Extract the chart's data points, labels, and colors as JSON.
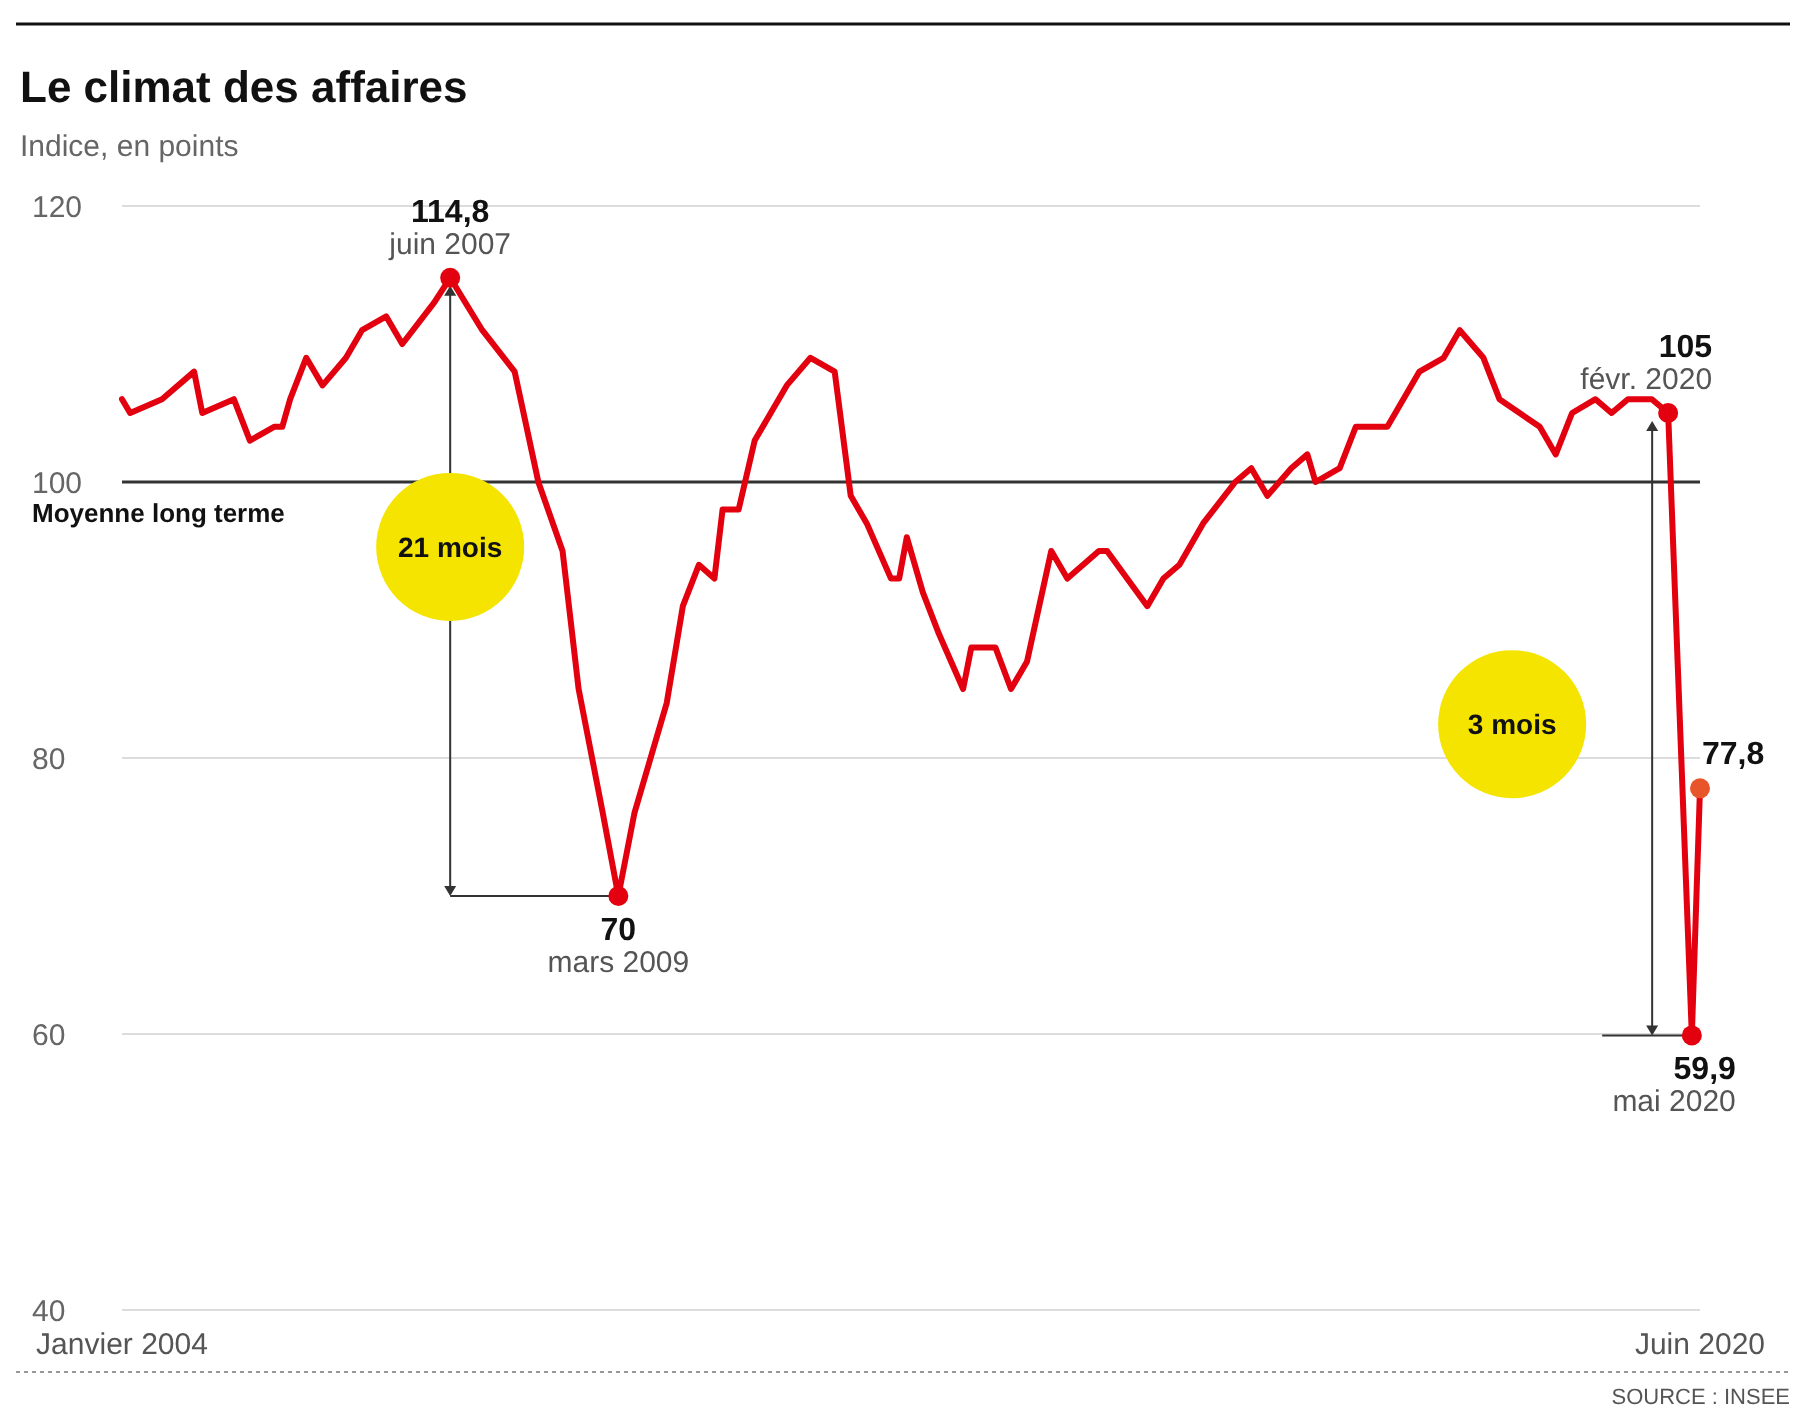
{
  "chart_data": {
    "type": "line",
    "title": "Le climat des affaires",
    "subtitle": "Indice, en points",
    "x": [
      "2004-01",
      "2004-02",
      "2004-06",
      "2004-10",
      "2004-11",
      "2005-03",
      "2005-05",
      "2005-08",
      "2005-09",
      "2005-10",
      "2005-12",
      "2006-02",
      "2006-05",
      "2006-07",
      "2006-10",
      "2006-12",
      "2007-04",
      "2007-06",
      "2007-10",
      "2008-02",
      "2008-05",
      "2008-08",
      "2008-10",
      "2009-01",
      "2009-03",
      "2009-05",
      "2009-09",
      "2009-11",
      "2010-01",
      "2010-03",
      "2010-04",
      "2010-06",
      "2010-08",
      "2010-10",
      "2010-12",
      "2011-03",
      "2011-06",
      "2011-08",
      "2011-10",
      "2012-01",
      "2012-02",
      "2012-03",
      "2012-05",
      "2012-07",
      "2012-10",
      "2012-11",
      "2013-02",
      "2013-04",
      "2013-06",
      "2013-09",
      "2013-11",
      "2014-03",
      "2014-04",
      "2014-09",
      "2014-11",
      "2015-01",
      "2015-04",
      "2015-08",
      "2015-10",
      "2015-12",
      "2016-03",
      "2016-05",
      "2016-06",
      "2016-09",
      "2016-11",
      "2017-03",
      "2017-07",
      "2017-10",
      "2017-12",
      "2018-03",
      "2018-05",
      "2018-10",
      "2018-12",
      "2019-02",
      "2019-05",
      "2019-07",
      "2019-09",
      "2019-12",
      "2020-02",
      "2020-05",
      "2020-06"
    ],
    "series": [
      {
        "color": "#e3000f",
        "values": [
          106,
          105,
          106,
          108,
          105,
          106,
          103,
          104,
          104,
          106,
          109,
          107,
          109,
          111,
          112,
          110,
          113,
          114.8,
          111,
          108,
          100,
          95,
          85,
          76,
          70,
          76,
          84,
          91,
          94,
          93,
          98,
          98,
          103,
          105,
          107,
          109,
          108,
          99,
          97,
          93,
          93,
          96,
          92,
          89,
          85,
          88,
          88,
          85,
          87,
          95,
          93,
          95,
          95,
          91,
          93,
          94,
          97,
          100,
          101,
          99,
          101,
          102,
          100,
          101,
          104,
          104,
          108,
          109,
          111,
          109,
          106,
          104,
          102,
          105,
          106,
          105,
          106,
          106,
          105,
          59.9,
          77.8
        ]
      },
      {
        "type": "scatter",
        "marker": "circle",
        "x": [
          "2007-06",
          "2009-03",
          "2020-02",
          "2020-05",
          "2020-06"
        ],
        "values": [
          114.8,
          70,
          105,
          59.9,
          77.8
        ],
        "colors": [
          "#e3000f",
          "#e3000f",
          "#e3000f",
          "#e3000f",
          "#e8552a"
        ],
        "value_labels": [
          "114,8\njuin 2007",
          "70\nmars 2009",
          "105\nfévr. 2020",
          "59,9\nmai 2020",
          "77,8"
        ]
      }
    ],
    "xlim": [
      "2004-01",
      "2020-06"
    ],
    "xticks": [
      {
        "value": "2004-01",
        "label": "Janvier 2004"
      },
      {
        "value": "2020-06",
        "label": "Juin 2020"
      }
    ],
    "ylim": [
      40,
      120
    ],
    "yticks": [
      40,
      60,
      80,
      100,
      120
    ],
    "grid": "y",
    "ref_lines": [
      {
        "axis": "y",
        "value": 100,
        "label": "Moyenne long terme",
        "color": "#333333"
      }
    ],
    "annotations": [
      "21 mois",
      "3 mois",
      "SOURCE : INSEE"
    ]
  }
}
